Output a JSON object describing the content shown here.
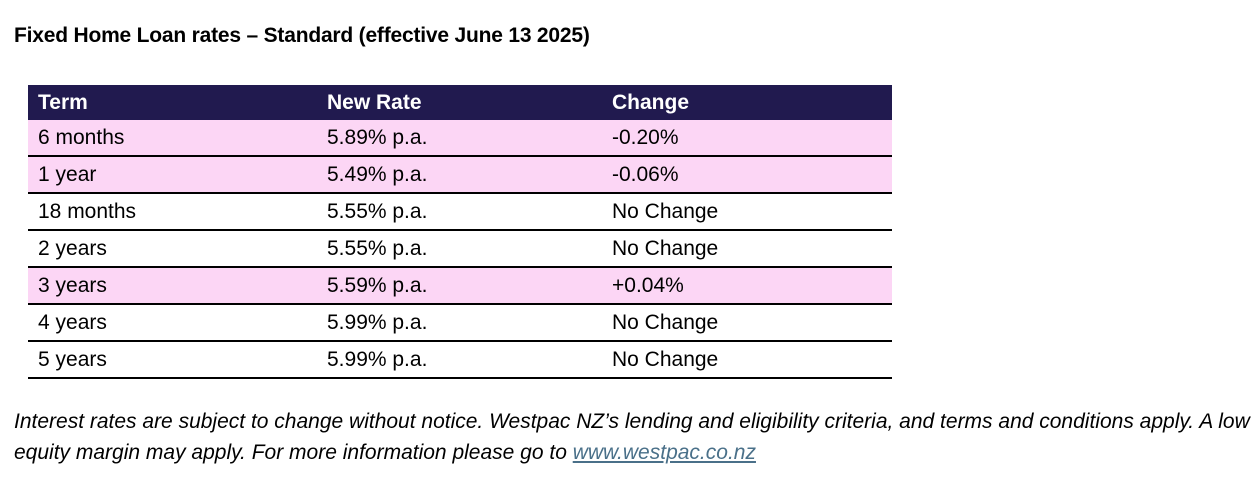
{
  "title": "Fixed Home Loan rates – Standard (effective June 13 2025)",
  "table": {
    "headers": [
      "Term",
      "New Rate",
      "Change"
    ],
    "rows": [
      {
        "term": "6 months",
        "rate": "5.89% p.a.",
        "change": "-0.20%",
        "highlighted": true
      },
      {
        "term": "1 year",
        "rate": "5.49% p.a.",
        "change": "-0.06%",
        "highlighted": true
      },
      {
        "term": "18 months",
        "rate": "5.55% p.a.",
        "change": "No Change",
        "highlighted": false
      },
      {
        "term": "2 years",
        "rate": "5.55% p.a.",
        "change": "No Change",
        "highlighted": false
      },
      {
        "term": "3 years",
        "rate": "5.59% p.a.",
        "change": "+0.04%",
        "highlighted": true
      },
      {
        "term": "4 years",
        "rate": "5.99% p.a.",
        "change": "No Change",
        "highlighted": false
      },
      {
        "term": "5 years",
        "rate": "5.99% p.a.",
        "change": "No Change",
        "highlighted": false
      }
    ]
  },
  "disclaimer": {
    "text": "Interest rates are subject to change without notice. Westpac NZ’s lending and eligibility criteria, and terms and conditions apply. A low equity margin may apply. For more information please go to ",
    "link_text": "www.westpac.co.nz"
  },
  "colors": {
    "header_bg": "#211a4f",
    "highlight_row_bg": "#fcd6f5",
    "link": "#4a7089"
  }
}
